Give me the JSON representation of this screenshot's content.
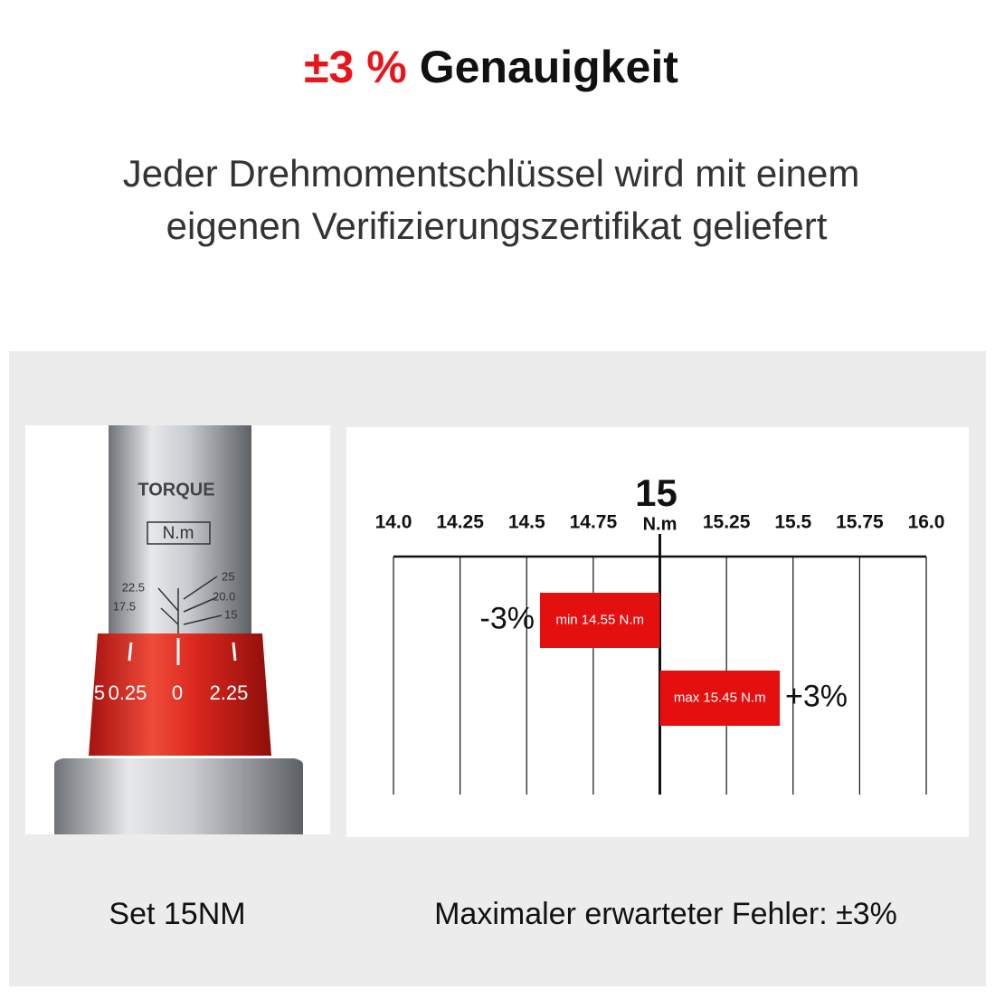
{
  "header": {
    "title_accent": "±3 %",
    "title": "Genauigkeit",
    "subtitle": [
      "Jeder Drehmomentschlüssel wird mit einem",
      "eigenen Verifizierungszertifikat geliefert"
    ]
  },
  "photo": {
    "brand": "TORQUE",
    "unit": "N.m",
    "scale_labels_left": [
      "22.5",
      "17.5"
    ],
    "scale_labels_right": [
      "25",
      "20.0",
      "15"
    ],
    "dial_labels": [
      "5",
      "0.25",
      "0",
      "2.25"
    ]
  },
  "captions": {
    "left": "Set 15NM",
    "right": "Maximaler erwarteter Fehler: ±3%"
  },
  "chart_data": {
    "type": "range",
    "unit": "N.m",
    "reference": 15,
    "xlim": [
      14,
      16
    ],
    "xticks": [
      {
        "value": 14,
        "label": "14.0"
      },
      14.25,
      14.5,
      14.75,
      15,
      15.25,
      15.5,
      15.75,
      {
        "value": 16,
        "label": "16.0"
      }
    ],
    "values": [
      14.55,
      15.45
    ],
    "value_labels": [
      "min 14.55 N.m",
      "max 15.45 N.m"
    ],
    "annotations": [
      "-3%",
      "+3%"
    ],
    "color": "#e3100f",
    "grid": true
  }
}
